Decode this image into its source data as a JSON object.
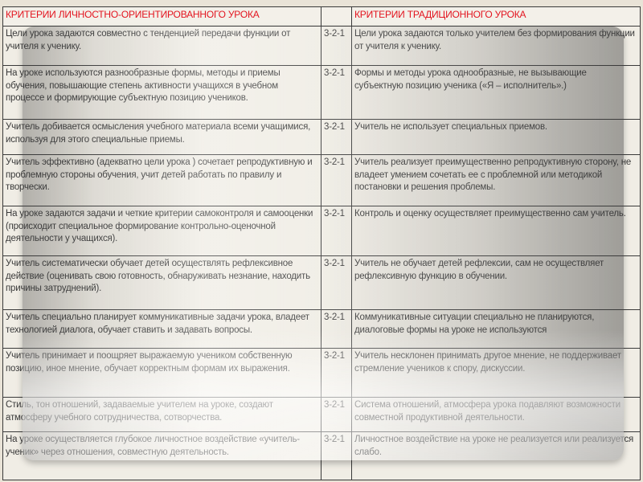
{
  "header": {
    "left": "КРИТЕРИИ ЛИЧНОСТНО-ОРИЕНТИРОВАННОГО УРОКА",
    "middle": "",
    "right": "КРИТЕРИИ ТРАДИЦИОННОГО УРОКА"
  },
  "colors": {
    "header_text": "#e3141f",
    "background": "#e9e3d7"
  },
  "rows": [
    {
      "left": "Цели урока задаются совместно с тенденцией передачи функции от учителя к ученику.",
      "score": "3-2-1",
      "right": "Цели урока задаются только учителем без формирования функции от учителя к ученику."
    },
    {
      "left": "На уроке используются разнообразные формы, методы и приемы обучения, повышающие степень активности учащихся в учебном процессе и формирующие субъектную позицию учеников.",
      "score": "3-2-1",
      "right": "Формы и методы урока однообразные, не вызывающие субъектную позицию ученика («Я – исполнитель».)"
    },
    {
      "left": "Учитель добивается осмысления учебного материала всеми учащимися, используя для этого специальные приемы.",
      "score": "3-2-1",
      "right": "Учитель не использует специальных приемов."
    },
    {
      "left": "Учитель эффективно (адекватно цели урока ) сочетает репродуктивную и проблемную стороны обучения, учит детей работать по правилу и творчески.",
      "score": "3-2-1",
      "right": "Учитель реализует преимущественно репродуктивную сторону, не владеет умением сочетать ее с проблемной или методикой постановки и решения проблемы."
    },
    {
      "left": "На уроке задаются задачи и четкие критерии самоконтроля и самооценки (происходит специальное формирование контрольно-оценочной деятельности у учащихся).",
      "score": "3-2-1",
      "right": "Контроль и оценку осуществляет преимущественно сам учитель."
    },
    {
      "left": "Учитель систематически обучает детей осуществлять рефлексивное действие (оценивать свою готовность, обнаруживать незнание, находить причины затруднений).",
      "score": "3-2-1",
      "right": "Учитель не обучает детей рефлексии, сам не осуществляет рефлексивную функцию в обучении."
    },
    {
      "left": "Учитель специально планирует коммуникативные задачи урока, владеет технологией диалога, обучает ставить и задавать вопросы.",
      "score": "3-2-1",
      "right": "Коммуникативные ситуации специально не планируются, диалоговые формы на уроке не используются"
    },
    {
      "left": "Учитель принимает и поощряет выражаемую учеником собственную позицию, иное мнение, обучает корректным формам их выражения.",
      "score": "3-2-1",
      "right": "Учитель несклонен принимать другое мнение, не поддерживает стремление учеников к спору, дискуссии."
    },
    {
      "left": "Стиль, тон отношений, задаваемые учителем на уроке, создают атмосферу учебного сотрудничества, сотворчества.",
      "score": "3-2-1",
      "right": "Система отношений, атмосфера урока подавляют возможности совместной продуктивной деятельности."
    },
    {
      "left": "На уроке осуществляется глубокое личностное воздействие «учитель-ученик» через отношения, совместную деятельность.",
      "score": "3-2-1",
      "right": "Личностное воздействие на уроке не реализуется или реализуется слабо."
    }
  ]
}
